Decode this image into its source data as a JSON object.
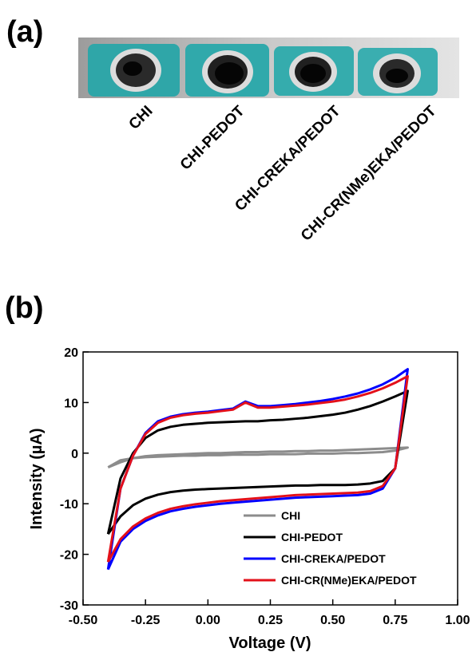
{
  "figure": {
    "panel_a_label": "(a)",
    "sample_labels": [
      "CHI",
      "CHI-PEDOT",
      "CHI-CREKA/PEDOT",
      "CHI-CR(NMe)EKA/PEDOT"
    ],
    "panel_b_label": "(b)"
  },
  "chart_data": {
    "type": "line",
    "x_label": "Voltage (V)",
    "y_label": "Intensity (µA)",
    "x": [
      -0.4,
      -0.35,
      -0.3,
      -0.25,
      -0.2,
      -0.15,
      -0.1,
      -0.05,
      0,
      0.05,
      0.1,
      0.15,
      0.2,
      0.25,
      0.3,
      0.35,
      0.4,
      0.45,
      0.5,
      0.55,
      0.6,
      0.65,
      0.7,
      0.75,
      0.8,
      0.75,
      0.7,
      0.65,
      0.6,
      0.55,
      0.5,
      0.45,
      0.4,
      0.35,
      0.3,
      0.25,
      0.2,
      0.15,
      0.1,
      0.05,
      0,
      -0.05,
      -0.1,
      -0.15,
      -0.2,
      -0.25,
      -0.3,
      -0.35,
      -0.4
    ],
    "series": [
      {
        "name": "CHI",
        "color": "#8c8c8c",
        "values": [
          -2.8,
          -1.8,
          -1.0,
          -0.6,
          -0.4,
          -0.3,
          -0.2,
          -0.1,
          0,
          0,
          0.1,
          0.2,
          0.2,
          0.3,
          0.3,
          0.4,
          0.4,
          0.5,
          0.5,
          0.6,
          0.7,
          0.8,
          0.9,
          1.0,
          1.1,
          0.5,
          0.2,
          0.1,
          0,
          0,
          -0.1,
          -0.1,
          -0.1,
          -0.2,
          -0.2,
          -0.2,
          -0.3,
          -0.3,
          -0.3,
          -0.4,
          -0.4,
          -0.5,
          -0.5,
          -0.6,
          -0.7,
          -0.8,
          -1.0,
          -1.4,
          -2.8
        ]
      },
      {
        "name": "CHI-PEDOT",
        "color": "#000000",
        "values": [
          -16,
          -5,
          0,
          3,
          4.5,
          5.2,
          5.6,
          5.8,
          6,
          6.1,
          6.2,
          6.3,
          6.3,
          6.5,
          6.6,
          6.8,
          7.0,
          7.3,
          7.6,
          8.0,
          8.6,
          9.3,
          10.2,
          11.2,
          12.3,
          -3,
          -5.5,
          -6,
          -6.2,
          -6.3,
          -6.3,
          -6.3,
          -6.4,
          -6.4,
          -6.5,
          -6.6,
          -6.7,
          -6.8,
          -6.9,
          -7.0,
          -7.1,
          -7.2,
          -7.4,
          -7.7,
          -8.2,
          -9.0,
          -10.3,
          -12.5,
          -16
        ]
      },
      {
        "name": "CHI-CREKA/PEDOT",
        "color": "#0000ff",
        "values": [
          -23,
          -7,
          -0.5,
          4,
          6.3,
          7.2,
          7.7,
          8.0,
          8.2,
          8.5,
          8.8,
          10.2,
          9.3,
          9.3,
          9.5,
          9.7,
          10.0,
          10.3,
          10.7,
          11.2,
          11.8,
          12.6,
          13.6,
          14.9,
          16.6,
          -3,
          -7,
          -8,
          -8.3,
          -8.4,
          -8.5,
          -8.6,
          -8.7,
          -8.8,
          -9.0,
          -9.2,
          -9.4,
          -9.6,
          -9.8,
          -10.0,
          -10.3,
          -10.6,
          -11.0,
          -11.5,
          -12.3,
          -13.4,
          -15.0,
          -17.5,
          -23
        ]
      },
      {
        "name": "CHI-CR(NMe)EKA/PEDOT",
        "color": "#e3101a",
        "values": [
          -21.5,
          -7,
          -0.5,
          3.8,
          6.0,
          7.0,
          7.5,
          7.8,
          8.0,
          8.3,
          8.6,
          10.0,
          9.0,
          9.0,
          9.2,
          9.4,
          9.6,
          9.9,
          10.2,
          10.6,
          11.2,
          11.9,
          12.8,
          13.9,
          15.2,
          -3,
          -6.5,
          -7.5,
          -7.8,
          -7.9,
          -8.0,
          -8.1,
          -8.2,
          -8.3,
          -8.5,
          -8.7,
          -8.9,
          -9.1,
          -9.3,
          -9.5,
          -9.8,
          -10.1,
          -10.5,
          -11.0,
          -11.8,
          -12.9,
          -14.5,
          -17,
          -21.5
        ]
      }
    ],
    "xlim": [
      -0.5,
      1.0
    ],
    "xticks": [
      {
        "value": -0.5,
        "label": "-0.50"
      },
      -0.25,
      {
        "value": 0,
        "label": "0.00"
      },
      0.25,
      {
        "value": 0.5,
        "label": "0.50"
      },
      0.75,
      {
        "value": 1.0,
        "label": "1.00"
      }
    ],
    "ylim": [
      -30,
      20
    ],
    "yticks": [
      -30,
      -20,
      -10,
      0,
      10,
      20
    ],
    "legend": "lower right",
    "grid": false
  }
}
